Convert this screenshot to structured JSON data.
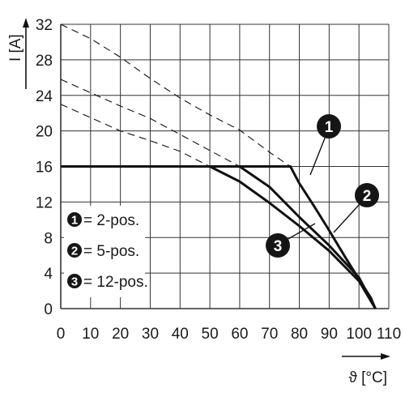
{
  "chart_data": {
    "type": "line",
    "xlabel": "ϑ [°C]",
    "ylabel": "I [A]",
    "xlim": [
      0,
      110
    ],
    "ylim": [
      0,
      32
    ],
    "xticks": [
      "0",
      "10",
      "20",
      "30",
      "40",
      "50",
      "60",
      "70",
      "80",
      "90",
      "100",
      "110"
    ],
    "yticks": [
      "0",
      "4",
      "8",
      "12",
      "16",
      "20",
      "24",
      "28",
      "32"
    ],
    "grid": true,
    "legend_position": "lower-left",
    "series": [
      {
        "name": "2-pos.",
        "marker": "1",
        "solid": [
          [
            0,
            16
          ],
          [
            77,
            16
          ],
          [
            80,
            14.1
          ],
          [
            85,
            11.5
          ],
          [
            90,
            8.8
          ],
          [
            95,
            6.0
          ],
          [
            100,
            3.3
          ],
          [
            104,
            1.2
          ],
          [
            105.5,
            0
          ]
        ],
        "dashed": [
          [
            0,
            32
          ],
          [
            10,
            30.4
          ],
          [
            20,
            28.3
          ],
          [
            30,
            25.9
          ],
          [
            40,
            23.7
          ],
          [
            50,
            21.8
          ],
          [
            60,
            20.1
          ],
          [
            70,
            17.6
          ],
          [
            77,
            16
          ]
        ]
      },
      {
        "name": "5-pos.",
        "marker": "2",
        "solid": [
          [
            0,
            16
          ],
          [
            60,
            16
          ],
          [
            70,
            13.7
          ],
          [
            80,
            10.3
          ],
          [
            90,
            7.1
          ],
          [
            100,
            3.5
          ],
          [
            105.5,
            0
          ]
        ],
        "dashed": [
          [
            0,
            25.8
          ],
          [
            10,
            24.3
          ],
          [
            20,
            22.8
          ],
          [
            30,
            21.4
          ],
          [
            40,
            19.6
          ],
          [
            50,
            17.8
          ],
          [
            60,
            16
          ]
        ]
      },
      {
        "name": "12-pos.",
        "marker": "3",
        "solid": [
          [
            0,
            16
          ],
          [
            50,
            16
          ],
          [
            60,
            14.3
          ],
          [
            70,
            11.9
          ],
          [
            80,
            9.3
          ],
          [
            90,
            6.5
          ],
          [
            100,
            3.1
          ],
          [
            105.5,
            0
          ]
        ],
        "dashed": [
          [
            0,
            23.0
          ],
          [
            10,
            21.5
          ],
          [
            20,
            20.0
          ],
          [
            30,
            18.9
          ],
          [
            40,
            17.7
          ],
          [
            50,
            16
          ]
        ]
      }
    ],
    "legend": [
      {
        "marker": "1",
        "text": "= 2-pos."
      },
      {
        "marker": "2",
        "text": "= 5-pos."
      },
      {
        "marker": "3",
        "text": "= 12-pos."
      }
    ],
    "colors": {
      "line": "#111111",
      "grid": "#333333",
      "marker_fill": "#151515"
    }
  }
}
